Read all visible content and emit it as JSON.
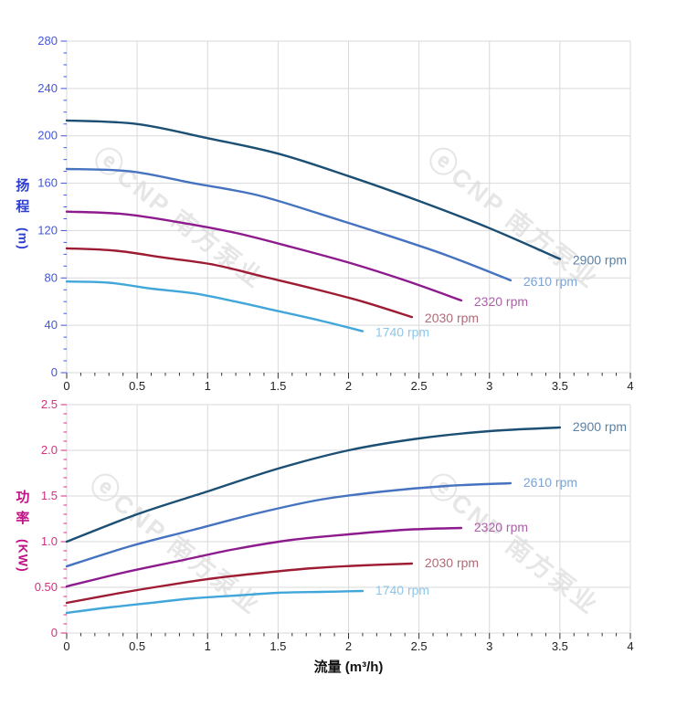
{
  "watermark": {
    "logo_glyph": "ⓔ",
    "text": "CNP 南方泵业",
    "color": "#cfcfcf"
  },
  "x_axis": {
    "title": "流量 (m³/h)",
    "min": 0,
    "max": 4,
    "major_step": 0.5,
    "minor_step": 0.1,
    "tick_labels": [
      "0",
      "0.5",
      "1",
      "1.5",
      "2",
      "2.5",
      "3",
      "3.5",
      "4"
    ],
    "tick_color": "#333333",
    "label_color": "#222222"
  },
  "grid_color": "#d9d9d9",
  "chart_data": [
    {
      "type": "line",
      "name": "head-vs-flow",
      "title": "扬程",
      "unit": "(m)",
      "xlabel": "流量 (m³/h)",
      "ylabel": "扬程(m)",
      "xlim": [
        0,
        4
      ],
      "ylim": [
        0,
        280
      ],
      "grid": true,
      "legend_position": "curve-end-labels",
      "y_axis": {
        "min": 0,
        "max": 280,
        "major_step": 40,
        "minor_step": 10,
        "tick_labels": [
          "0",
          "40",
          "80",
          "120",
          "160",
          "200",
          "240",
          "280"
        ],
        "title_color": "#2e3ed0",
        "tick_color": "#4356d8"
      },
      "series": [
        {
          "name": "2900 rpm",
          "label": "2900 rpm",
          "color": "#1c4f74",
          "label_color": "#5b7fa1",
          "points": [
            [
              0,
              213
            ],
            [
              0.5,
              210
            ],
            [
              1,
              198
            ],
            [
              1.5,
              185
            ],
            [
              2,
              166
            ],
            [
              2.5,
              145
            ],
            [
              3,
              122
            ],
            [
              3.5,
              96
            ]
          ]
        },
        {
          "name": "2610 rpm",
          "label": "2610 rpm",
          "color": "#4673c0",
          "label_color": "#7ba3d6",
          "points": [
            [
              0,
              172
            ],
            [
              0.45,
              170
            ],
            [
              0.9,
              160
            ],
            [
              1.35,
              150
            ],
            [
              1.8,
              134
            ],
            [
              2.25,
              117
            ],
            [
              2.7,
              99
            ],
            [
              3.15,
              78
            ]
          ]
        },
        {
          "name": "2320 rpm",
          "label": "2320 rpm",
          "color": "#8e1b8e",
          "label_color": "#ab60a8",
          "points": [
            [
              0,
              136
            ],
            [
              0.4,
              134
            ],
            [
              0.8,
              127
            ],
            [
              1.2,
              118
            ],
            [
              1.6,
              106
            ],
            [
              2,
              93
            ],
            [
              2.4,
              78
            ],
            [
              2.8,
              61
            ]
          ]
        },
        {
          "name": "2030 rpm",
          "label": "2030 rpm",
          "color": "#9e1c33",
          "label_color": "#b16a77",
          "points": [
            [
              0,
              105
            ],
            [
              0.35,
              103
            ],
            [
              0.7,
              97
            ],
            [
              1.05,
              91
            ],
            [
              1.4,
              81
            ],
            [
              1.75,
              71
            ],
            [
              2.1,
              60
            ],
            [
              2.45,
              47
            ]
          ]
        },
        {
          "name": "1740 rpm",
          "label": "1740 rpm",
          "color": "#41a7da",
          "label_color": "#8ec6e9",
          "points": [
            [
              0,
              77
            ],
            [
              0.3,
              76
            ],
            [
              0.6,
              71
            ],
            [
              0.9,
              67
            ],
            [
              1.2,
              60
            ],
            [
              1.5,
              52
            ],
            [
              1.8,
              44
            ],
            [
              2.1,
              35
            ]
          ]
        }
      ]
    },
    {
      "type": "line",
      "name": "power-vs-flow",
      "title": "功率",
      "unit": "(KW)",
      "xlabel": "流量 (m³/h)",
      "ylabel": "功率(KW)",
      "xlim": [
        0,
        4
      ],
      "ylim": [
        0,
        2.5
      ],
      "grid": true,
      "legend_position": "curve-end-labels",
      "y_axis": {
        "min": 0,
        "max": 2.5,
        "major_step": 0.5,
        "minor_step": 0.1,
        "tick_labels": [
          "0",
          "0.50",
          "1.0",
          "1.5",
          "2.0",
          "2.5"
        ],
        "title_color": "#c01385",
        "tick_color": "#d23282"
      },
      "series": [
        {
          "name": "2900 rpm",
          "label": "2900 rpm",
          "color": "#1c4f74",
          "label_color": "#5b7fa1",
          "points": [
            [
              0,
              1.0
            ],
            [
              0.5,
              1.3
            ],
            [
              1,
              1.55
            ],
            [
              1.5,
              1.8
            ],
            [
              2,
              2.0
            ],
            [
              2.5,
              2.13
            ],
            [
              3,
              2.21
            ],
            [
              3.5,
              2.25
            ]
          ]
        },
        {
          "name": "2610 rpm",
          "label": "2610 rpm",
          "color": "#4673c0",
          "label_color": "#7ba3d6",
          "points": [
            [
              0,
              0.73
            ],
            [
              0.45,
              0.95
            ],
            [
              0.9,
              1.13
            ],
            [
              1.35,
              1.31
            ],
            [
              1.8,
              1.46
            ],
            [
              2.25,
              1.55
            ],
            [
              2.7,
              1.61
            ],
            [
              3.15,
              1.64
            ]
          ]
        },
        {
          "name": "2320 rpm",
          "label": "2320 rpm",
          "color": "#8e1b8e",
          "label_color": "#ab60a8",
          "points": [
            [
              0,
              0.51
            ],
            [
              0.4,
              0.66
            ],
            [
              0.8,
              0.79
            ],
            [
              1.2,
              0.92
            ],
            [
              1.6,
              1.02
            ],
            [
              2,
              1.08
            ],
            [
              2.4,
              1.13
            ],
            [
              2.8,
              1.15
            ]
          ]
        },
        {
          "name": "2030 rpm",
          "label": "2030 rpm",
          "color": "#9e1c33",
          "label_color": "#b16a77",
          "points": [
            [
              0,
              0.33
            ],
            [
              0.35,
              0.43
            ],
            [
              0.7,
              0.52
            ],
            [
              1.05,
              0.6
            ],
            [
              1.4,
              0.66
            ],
            [
              1.75,
              0.71
            ],
            [
              2.1,
              0.74
            ],
            [
              2.45,
              0.76
            ]
          ]
        },
        {
          "name": "1740 rpm",
          "label": "1740 rpm",
          "color": "#41a7da",
          "label_color": "#8ec6e9",
          "points": [
            [
              0,
              0.22
            ],
            [
              0.3,
              0.28
            ],
            [
              0.6,
              0.33
            ],
            [
              0.9,
              0.38
            ],
            [
              1.2,
              0.41
            ],
            [
              1.5,
              0.44
            ],
            [
              1.8,
              0.45
            ],
            [
              2.1,
              0.46
            ]
          ]
        }
      ]
    }
  ]
}
